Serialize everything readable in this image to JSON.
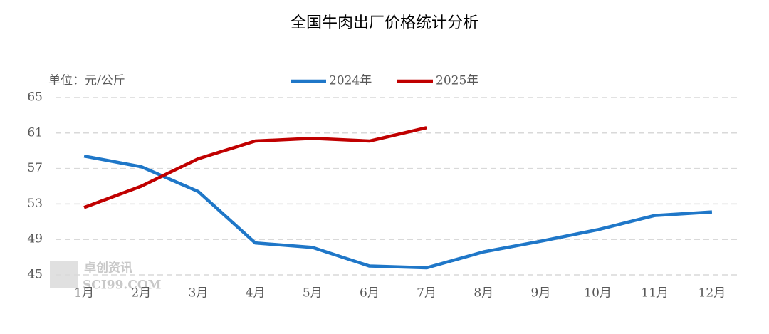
{
  "chart_data": {
    "type": "line",
    "title": "全国牛肉出厂价格统计分析",
    "unit_label": "单位：元/公斤",
    "watermark": [
      "卓创资讯",
      "SCI99.COM"
    ],
    "categories": [
      "1月",
      "2月",
      "3月",
      "4月",
      "5月",
      "6月",
      "7月",
      "8月",
      "9月",
      "10月",
      "11月",
      "12月"
    ],
    "series": [
      {
        "name": "2024年",
        "color": "#1f77c8",
        "values": [
          58.4,
          57.2,
          54.4,
          48.6,
          48.1,
          46.0,
          45.8,
          47.6,
          48.8,
          50.1,
          51.7,
          52.1
        ]
      },
      {
        "name": "2025年",
        "color": "#c00000",
        "values": [
          52.6,
          55.0,
          58.1,
          60.1,
          60.4,
          60.1,
          61.6,
          null,
          null,
          null,
          null,
          null
        ]
      }
    ],
    "ylim": [
      45,
      65
    ],
    "yticks": [
      45,
      49,
      53,
      57,
      61,
      65
    ],
    "grid": true
  }
}
